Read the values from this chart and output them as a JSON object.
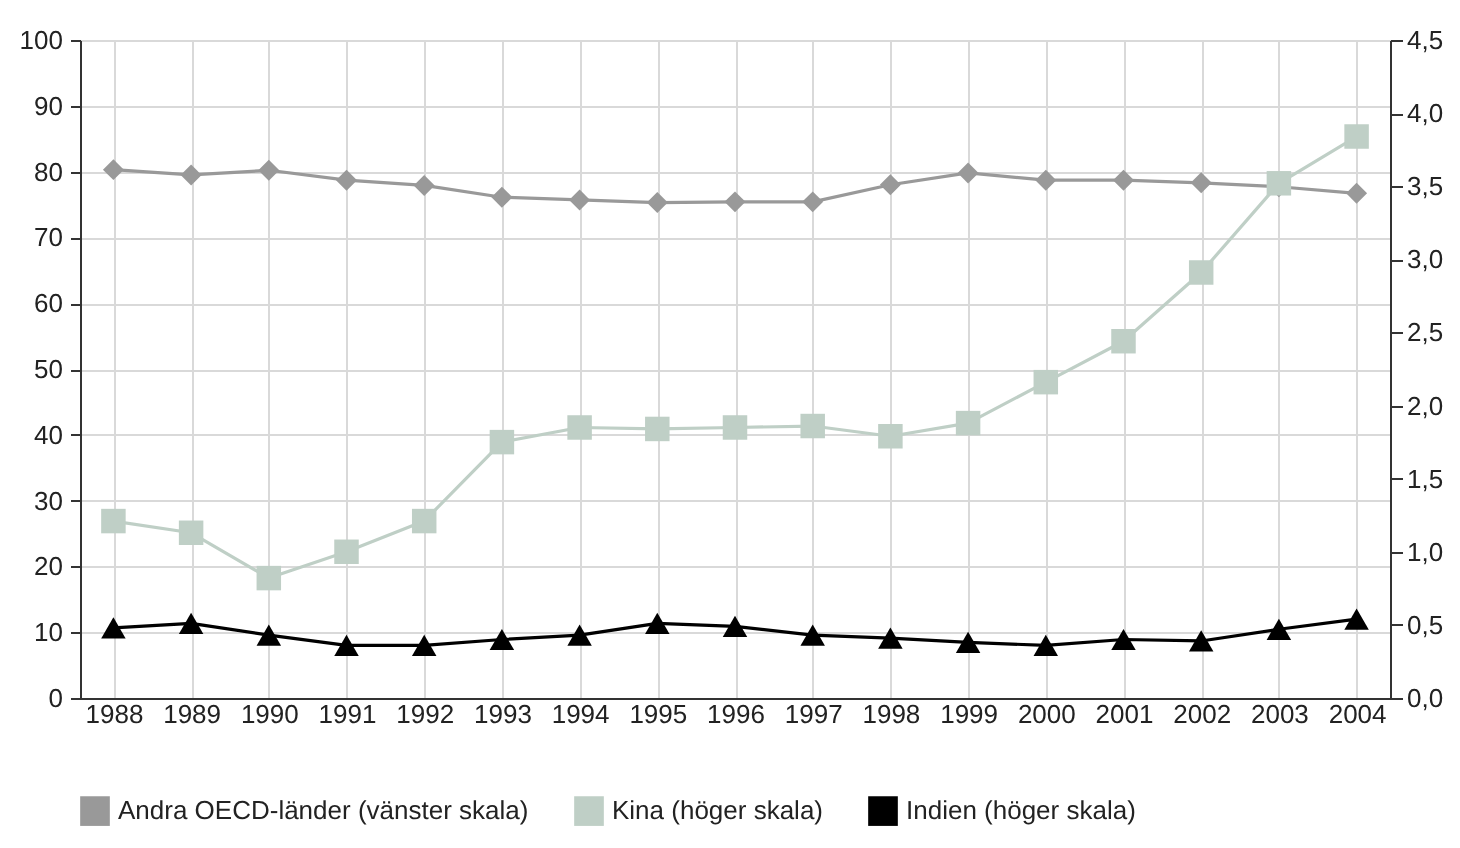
{
  "chart_data": {
    "type": "line",
    "categories": [
      "1988",
      "1989",
      "1990",
      "1991",
      "1992",
      "1993",
      "1994",
      "1995",
      "1996",
      "1997",
      "1998",
      "1999",
      "2000",
      "2001",
      "2002",
      "2003",
      "2004"
    ],
    "series": [
      {
        "name": "Andra OECD-länder (vänster skala)",
        "color": "#999999",
        "marker": "diamond",
        "values": [
          80.3,
          79.5,
          80.2,
          78.7,
          77.9,
          76.1,
          75.7,
          75.3,
          75.4,
          75.4,
          78.0,
          79.8,
          78.7,
          78.7,
          78.3,
          77.7,
          76.7
        ]
      },
      {
        "name": "Kina (höger skala)",
        "color": "#bfcfc6",
        "marker": "square",
        "axis": "y2",
        "values": [
          1.21,
          1.13,
          0.82,
          1.0,
          1.21,
          1.75,
          1.85,
          1.84,
          1.85,
          1.86,
          1.79,
          1.88,
          2.16,
          2.44,
          2.91,
          3.52,
          3.84
        ]
      },
      {
        "name": "Indien (höger skala)",
        "color": "#000000",
        "marker": "triangle",
        "axis": "y2",
        "values": [
          0.48,
          0.51,
          0.43,
          0.36,
          0.36,
          0.4,
          0.43,
          0.51,
          0.49,
          0.43,
          0.41,
          0.38,
          0.36,
          0.4,
          0.39,
          0.47,
          0.54
        ]
      }
    ],
    "ylim": [
      0,
      100
    ],
    "yticks": [
      0,
      10,
      20,
      30,
      40,
      50,
      60,
      70,
      80,
      90,
      100
    ],
    "y2lim": [
      0,
      4.5
    ],
    "y2ticks": [
      {
        "value": 0,
        "label": "0,0"
      },
      {
        "value": 0.5,
        "label": "0,5"
      },
      {
        "value": 1,
        "label": "1,0"
      },
      {
        "value": 1.5,
        "label": "1,5"
      },
      {
        "value": 2,
        "label": "2,0"
      },
      {
        "value": 2.5,
        "label": "2,5"
      },
      {
        "value": 3,
        "label": "3,0"
      },
      {
        "value": 3.5,
        "label": "3,5"
      },
      {
        "value": 4,
        "label": "4,0"
      },
      {
        "value": 4.5,
        "label": "4,5"
      }
    ],
    "grid": true,
    "legend": "bottom"
  }
}
